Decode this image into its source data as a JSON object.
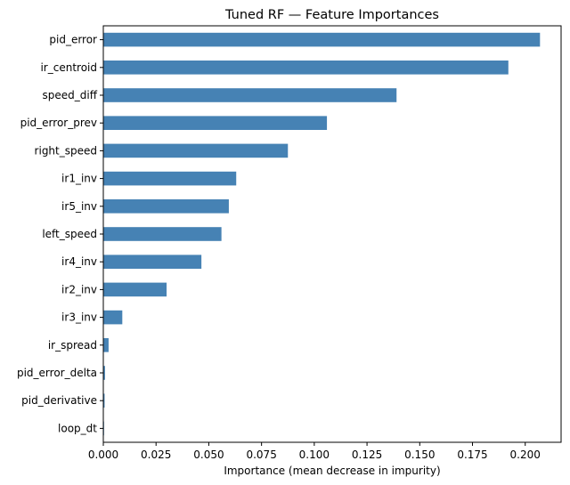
{
  "chart_data": {
    "type": "bar",
    "orientation": "horizontal",
    "title": "Tuned RF — Feature Importances",
    "xlabel": "Importance (mean decrease in impurity)",
    "ylabel": "",
    "xlim": [
      0,
      0.217
    ],
    "xticks": [
      0.0,
      0.025,
      0.05,
      0.075,
      0.1,
      0.125,
      0.15,
      0.175,
      0.2
    ],
    "xtick_labels": [
      "0.000",
      "0.025",
      "0.050",
      "0.075",
      "0.100",
      "0.125",
      "0.150",
      "0.175",
      "0.200"
    ],
    "grid": false,
    "bar_color": "#4682b4",
    "categories": [
      "pid_error",
      "ir_centroid",
      "speed_diff",
      "pid_error_prev",
      "right_speed",
      "ir1_inv",
      "ir5_inv",
      "left_speed",
      "ir4_inv",
      "ir2_inv",
      "ir3_inv",
      "ir_spread",
      "pid_error_delta",
      "pid_derivative",
      "loop_dt"
    ],
    "values": [
      0.207,
      0.192,
      0.139,
      0.106,
      0.0875,
      0.063,
      0.0595,
      0.056,
      0.0465,
      0.03,
      0.009,
      0.0025,
      0.0008,
      0.0006,
      0.0002
    ]
  }
}
